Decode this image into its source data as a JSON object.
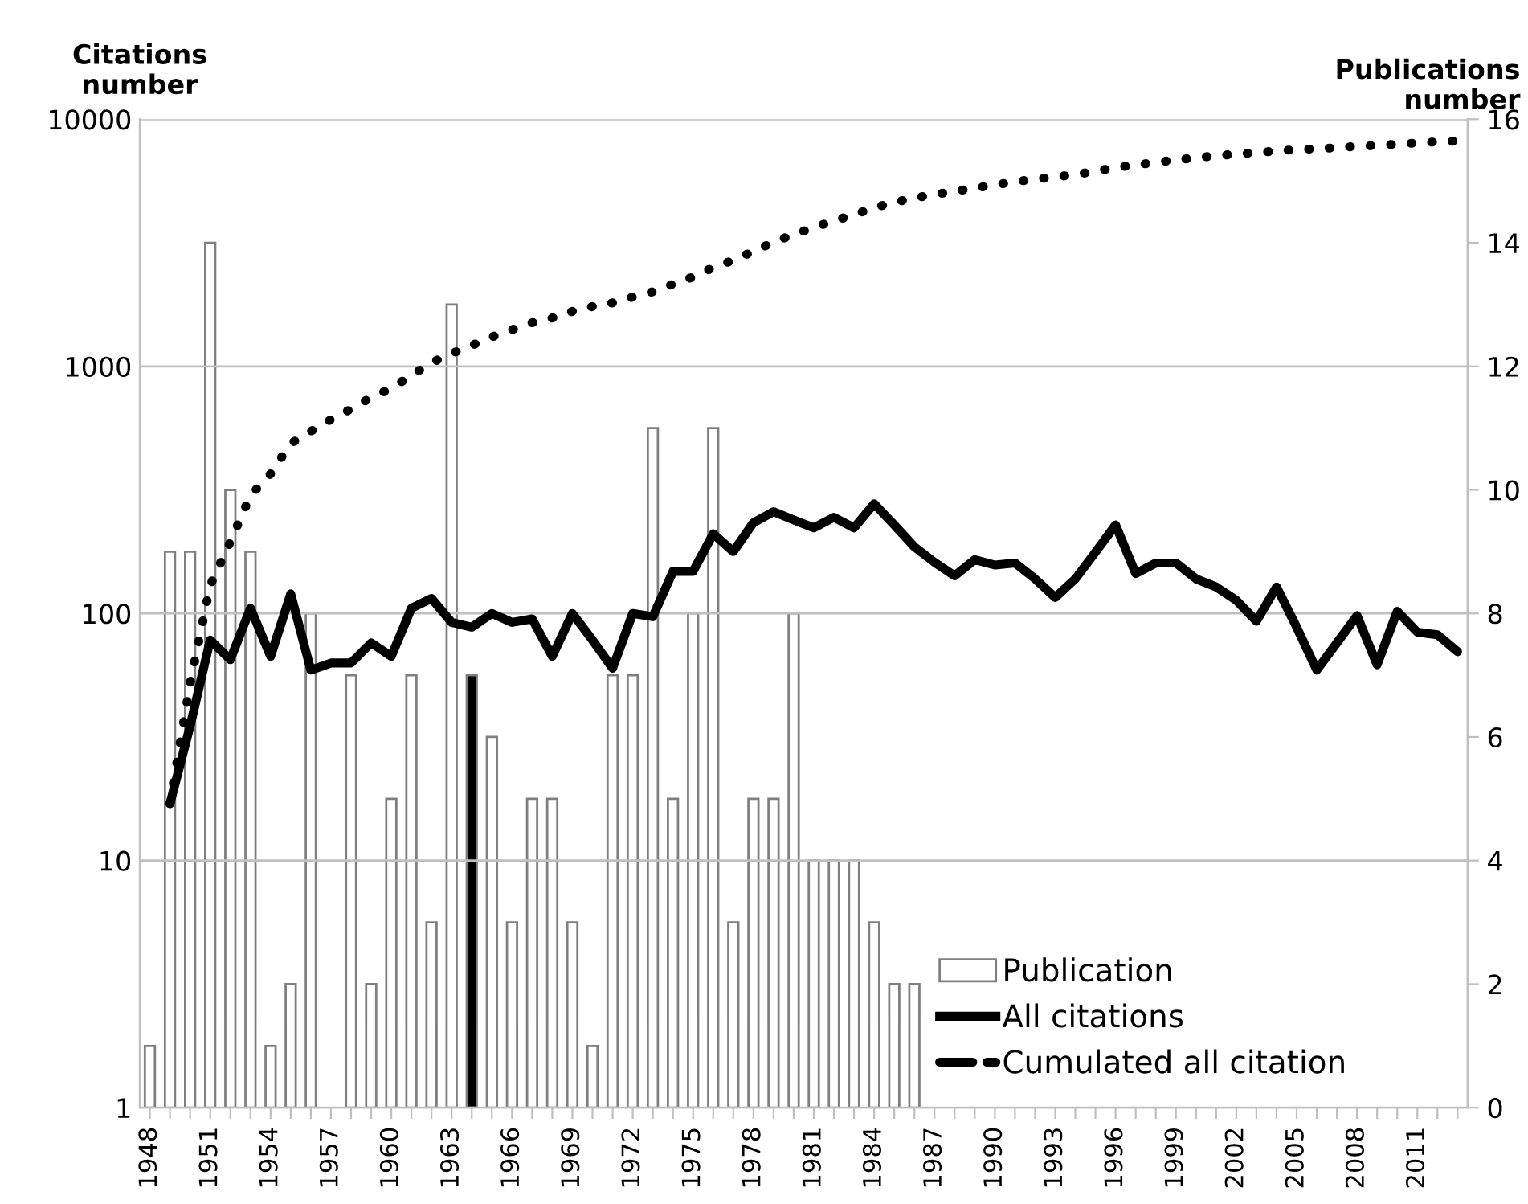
{
  "chart_data": {
    "type": "bar",
    "ylabel": "Citations\nnumber",
    "y2label": "Publications\nnumber",
    "categories": [
      "1948",
      null,
      null,
      "1951",
      null,
      null,
      "1954",
      null,
      null,
      "1957",
      null,
      null,
      "1960",
      null,
      null,
      "1963",
      null,
      null,
      "1966",
      null,
      null,
      "1969",
      null,
      null,
      "1972",
      null,
      null,
      "1975",
      null,
      null,
      "1978",
      null,
      null,
      "1981",
      null,
      null,
      "1984",
      null,
      null,
      "1987",
      null,
      null,
      "1990",
      null,
      null,
      "1993",
      null,
      null,
      "1996",
      null,
      null,
      "1999",
      null,
      null,
      "2002",
      null,
      null,
      "2005",
      null,
      null,
      "2008",
      null,
      null,
      "2011",
      null,
      null
    ],
    "series": [
      {
        "name": "Publication",
        "axis": "y2",
        "values": [
          1,
          9,
          9,
          14,
          10,
          9,
          1,
          2,
          8,
          null,
          7,
          2,
          5,
          7,
          3,
          13,
          7,
          6,
          3,
          5,
          5,
          3,
          1,
          7,
          7,
          11,
          5,
          8,
          11,
          3,
          5,
          5,
          8,
          4,
          4,
          4,
          3,
          2,
          2,
          null,
          null,
          null,
          null,
          null,
          null,
          null,
          null,
          null,
          null,
          null,
          null,
          null,
          null,
          null,
          null,
          null,
          null,
          null,
          null,
          null,
          null,
          null,
          null,
          null,
          null,
          null
        ],
        "colors": [
          "#ffffff",
          "#ffffff",
          "#ffffff",
          "#ffffff",
          "#ffffff",
          "#ffffff",
          "#ffffff",
          "#ffffff",
          "#ffffff",
          "#ffffff",
          "#ffffff",
          "#ffffff",
          "#ffffff",
          "#ffffff",
          "#ffffff",
          "#ffffff",
          "#000000",
          "#ffffff",
          "#ffffff",
          "#ffffff",
          "#ffffff",
          "#ffffff",
          "#ffffff",
          "#ffffff",
          "#ffffff",
          "#ffffff",
          "#ffffff",
          "#ffffff",
          "#ffffff",
          "#ffffff",
          "#ffffff",
          "#ffffff",
          "#ffffff",
          "#ffffff",
          "#ffffff",
          "#ffffff",
          "#ffffff",
          "#ffffff",
          "#ffffff",
          "#ffffff",
          "#ffffff",
          "#ffffff",
          "#ffffff",
          "#ffffff",
          "#ffffff",
          "#ffffff",
          "#ffffff",
          "#ffffff",
          "#ffffff",
          "#ffffff",
          "#ffffff",
          "#ffffff",
          "#ffffff",
          "#ffffff",
          "#ffffff",
          "#ffffff",
          "#ffffff",
          "#ffffff",
          "#ffffff",
          "#ffffff",
          "#ffffff",
          "#ffffff",
          "#ffffff",
          "#ffffff",
          "#ffffff",
          "#ffffff"
        ]
      },
      {
        "name": "All citations",
        "type": "line",
        "color": "#000000",
        "line_style": "solid",
        "values": [
          null,
          17,
          35,
          78,
          65,
          105,
          67,
          120,
          59,
          63,
          63,
          76,
          67,
          105,
          115,
          92,
          88,
          100,
          92,
          95,
          67,
          100,
          78,
          60,
          100,
          97,
          148,
          148,
          210,
          178,
          233,
          258,
          239,
          222,
          245,
          222,
          278,
          228,
          186,
          161,
          142,
          165,
          157,
          160,
          138,
          116,
          138,
          177,
          228,
          145,
          160,
          160,
          138,
          128,
          113,
          93,
          128,
          88,
          59,
          76,
          98,
          62,
          102,
          84,
          82,
          70
        ]
      },
      {
        "name": "Cumulated all citation",
        "type": "line",
        "color": "#000000",
        "line_style": "dotted",
        "values": [
          null,
          17,
          52,
          130,
          195,
          300,
          367,
          487,
          546,
          609,
          672,
          748,
          815,
          920,
          1035,
          1127,
          1215,
          1315,
          1407,
          1502,
          1569,
          1669,
          1747,
          1807,
          1907,
          2004,
          2152,
          2300,
          2510,
          2688,
          2921,
          3179,
          3418,
          3640,
          3885,
          4107,
          4385,
          4613,
          4799,
          4960,
          5102,
          5267,
          5424,
          5584,
          5722,
          5838,
          5976,
          6153,
          6381,
          6526,
          6686,
          6846,
          6984,
          7112,
          7225,
          7318,
          7446,
          7534,
          7593,
          7669,
          7767,
          7829,
          7931,
          8015,
          8097,
          8167
        ]
      }
    ],
    "log": "y",
    "ylim": [
      1,
      10000
    ],
    "yticks": [
      1,
      10,
      100,
      1000,
      10000
    ],
    "y2lim": [
      0,
      16
    ],
    "y2ticks": [
      0,
      2,
      4,
      6,
      8,
      10,
      12,
      14,
      16
    ],
    "grid": "y",
    "legend": "bottom right"
  }
}
